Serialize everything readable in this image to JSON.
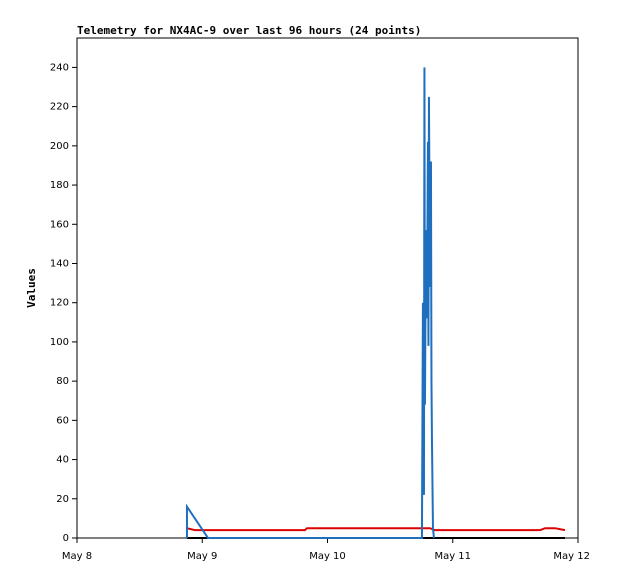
{
  "chart_data": {
    "type": "line",
    "title": "Telemetry for NX4AC-9 over last 96 hours (24 points)",
    "y_label": "Values",
    "xlim": [
      8,
      12
    ],
    "xticks": [
      {
        "value": 8,
        "label": "May 8"
      },
      {
        "value": 9,
        "label": "May 9"
      },
      {
        "value": 10,
        "label": "May 10"
      },
      {
        "value": 11,
        "label": "May 11"
      },
      {
        "value": 12,
        "label": "May 12"
      }
    ],
    "ylim": [
      0,
      255
    ],
    "yticks": [
      0,
      20,
      40,
      60,
      80,
      100,
      120,
      140,
      160,
      180,
      200,
      220,
      240
    ],
    "series": [
      {
        "color": "#000000",
        "x": [
          8.878,
          11.896
        ],
        "values": [
          0,
          0
        ]
      },
      {
        "color": "#dd0000",
        "x": [
          8.878,
          8.942,
          9.82,
          9.836,
          10.818,
          10.858,
          11.697,
          11.737,
          11.816,
          11.896
        ],
        "values": [
          5,
          4,
          4,
          5,
          5,
          4,
          4,
          5,
          5,
          4
        ]
      },
      {
        "color": "#1f6fbf",
        "x": [
          8.878,
          8.878,
          9.046,
          10.754,
          10.762,
          10.77,
          10.774,
          10.778,
          10.786,
          10.794,
          10.802,
          10.806,
          10.81,
          10.818,
          10.826,
          10.83,
          10.834,
          10.842,
          10.85
        ],
        "values": [
          0,
          16,
          0,
          0,
          120,
          22,
          240,
          68,
          157,
          112,
          202,
          98,
          225,
          128,
          192,
          80,
          50,
          5,
          0
        ]
      }
    ]
  }
}
